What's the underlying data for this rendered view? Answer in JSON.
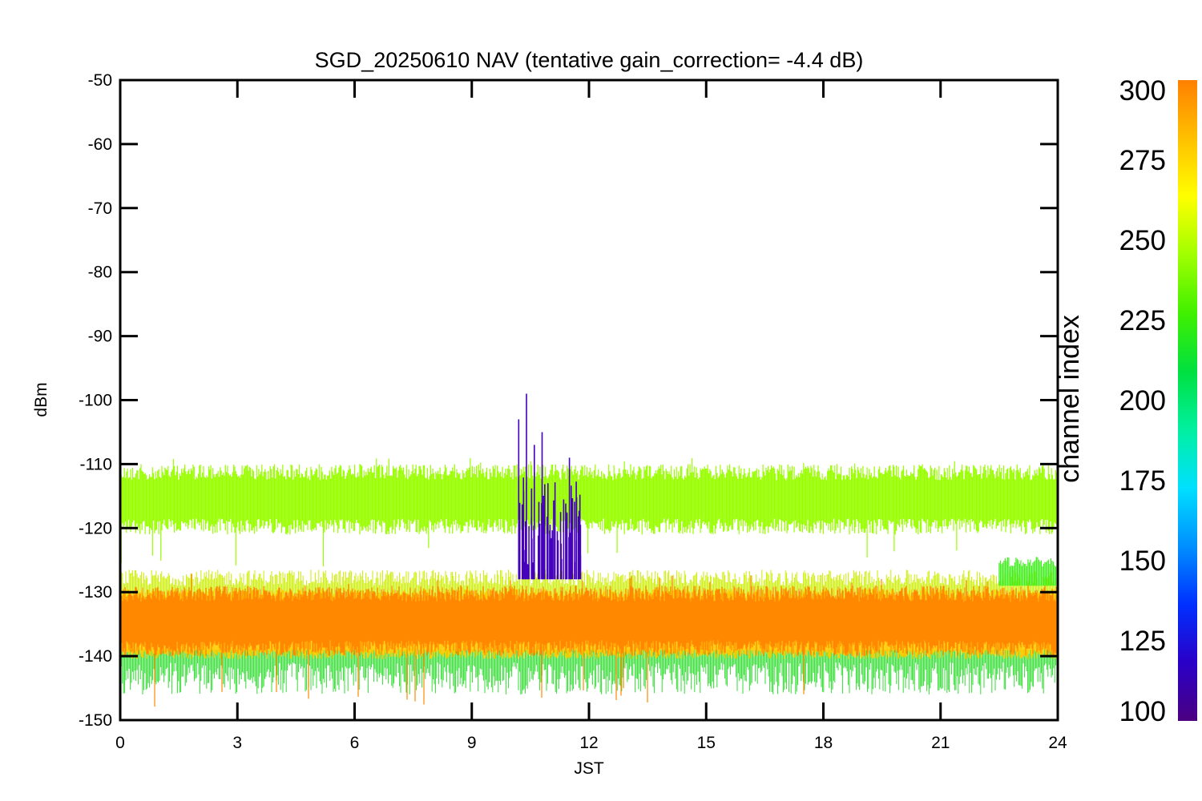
{
  "chart_data": {
    "type": "line",
    "title": "SGD_20250610 NAV (tentative gain_correction= -4.4 dB)",
    "xlabel": "JST",
    "ylabel": "dBm",
    "xlim": [
      0,
      24
    ],
    "ylim": [
      -150,
      -50
    ],
    "x_ticks": [
      "0",
      "3",
      "6",
      "9",
      "12",
      "15",
      "18",
      "21",
      "24"
    ],
    "y_ticks": [
      "-50",
      "-60",
      "-70",
      "-80",
      "-90",
      "-100",
      "-110",
      "-120",
      "-130",
      "-140",
      "-150"
    ],
    "grid": false,
    "colorbar": {
      "label": "channel index",
      "range": [
        100,
        300
      ],
      "ticks": [
        "300",
        "275",
        "250",
        "225",
        "200",
        "175",
        "150",
        "125",
        "100"
      ],
      "colormap": [
        "#4a0080",
        "#2a00c8",
        "#0030ff",
        "#0090ff",
        "#00e0ff",
        "#00f0a0",
        "#00e040",
        "#40f000",
        "#a0ff00",
        "#ffff00",
        "#ffc000",
        "#ff8000"
      ]
    },
    "series": [
      {
        "channels": "~255-265",
        "color": "#99ff00",
        "x_range": [
          0,
          24
        ],
        "mean_dBm": -115.5,
        "typical_range_dBm": [
          -121,
          -110
        ],
        "extremes_dBm": [
          -126,
          -109
        ]
      },
      {
        "channels": "~280-300",
        "color": "#ff8800",
        "x_range": [
          0,
          24
        ],
        "mean_dBm": -134.5,
        "typical_range_dBm": [
          -140,
          -129
        ],
        "extremes_dBm": [
          -148,
          -127
        ]
      },
      {
        "channels": "~105-150",
        "color": "#4400bb",
        "x_range": [
          10.2,
          11.8
        ],
        "peak_dBm": [
          -99,
          -103,
          -105,
          -107,
          -109
        ],
        "peak_x": [
          10.4,
          10.2,
          10.8,
          10.6,
          11.5
        ],
        "floor_dBm": -128
      }
    ]
  }
}
